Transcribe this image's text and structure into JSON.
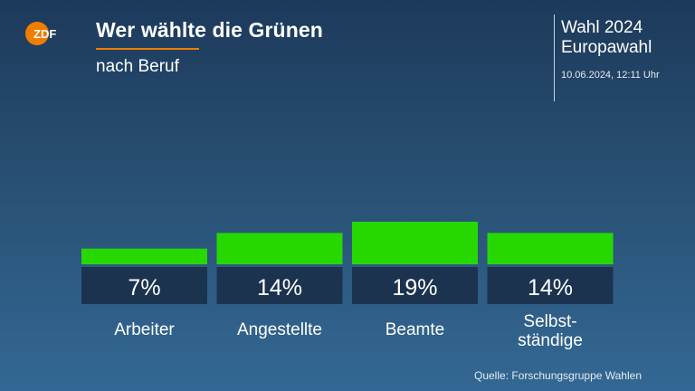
{
  "header": {
    "brand": "ZDF",
    "title": "Wer wählte die Grünen",
    "subtitle": "nach Beruf",
    "event_line1": "Wahl 2024",
    "event_line2": "Europawahl",
    "timestamp": "10.06.2024, 12:11 Uhr"
  },
  "footer": {
    "source": "Quelle: Forschungsgruppe Wahlen"
  },
  "colors": {
    "bar": "#27d800",
    "value_box": "#1c3350",
    "accent": "#f07d00"
  },
  "chart_data": {
    "type": "bar",
    "title": "Wer wählte die Grünen",
    "subtitle": "nach Beruf",
    "categories": [
      "Arbeiter",
      "Angestellte",
      "Beamte",
      "Selbst-\nständige"
    ],
    "values": [
      7,
      14,
      19,
      14
    ],
    "value_labels": [
      "7%",
      "14%",
      "19%",
      "14%"
    ],
    "unit": "%",
    "ylim": [
      0,
      19
    ],
    "grid": false,
    "legend": "none"
  }
}
